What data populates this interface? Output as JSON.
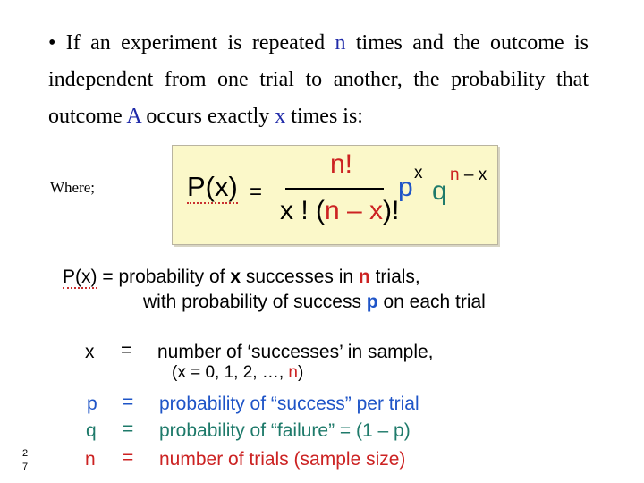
{
  "intro": {
    "bullet": "•",
    "part1": "If an experiment is repeated ",
    "n": "n",
    "part2": " times and the outcome is independent from one trial to another, the probability that outcome ",
    "A": "A",
    "part3": " occurs exactly ",
    "x": "x",
    "part4": " times is:"
  },
  "where_label": "Where;",
  "formula": {
    "lhs": "P(x)",
    "eq": "=",
    "numerator": "n!",
    "den_x": "x ! (",
    "den_nx": "n – x",
    "den_close": ")!",
    "p": "p",
    "p_exp": "x",
    "q": "q",
    "q_exp_n": "n",
    "q_exp_rest": " – x"
  },
  "definitions": {
    "px": {
      "symbol": "P(x)",
      "eq": " = ",
      "text1": "probability of ",
      "x": "x",
      "text2": " successes in ",
      "n": "n",
      "text3": " trials,",
      "line2a": "with probability of success ",
      "p": "p",
      "line2b": " on each trial"
    },
    "x": {
      "symbol": "x",
      "eq": "=",
      "text": "number of ‘successes’ in sample,",
      "line2a": "(x = 0,  1,  2,  …,  ",
      "n": "n",
      "line2b": ")"
    },
    "p": {
      "symbol": "p",
      "eq": "=",
      "text": "probability of “success” per trial"
    },
    "q": {
      "symbol": "q",
      "eq": "=",
      "text": "probability of “failure” = (1 – p)"
    },
    "n": {
      "symbol": "n",
      "eq": "=",
      "text": "number of trials (sample size)"
    }
  },
  "page_number": [
    "2",
    "7"
  ],
  "colors": {
    "blue_text": "#1f2aa8",
    "red": "#cc2222",
    "p_blue": "#1e54c7",
    "q_teal": "#1e7a6a",
    "formula_bg": "#fbf8c9"
  }
}
